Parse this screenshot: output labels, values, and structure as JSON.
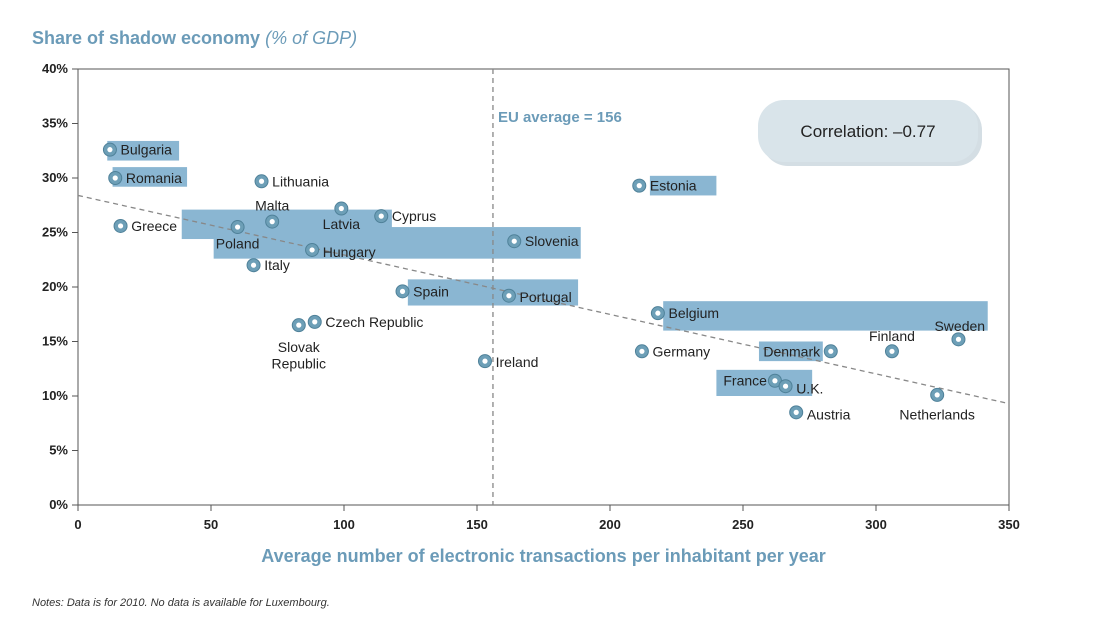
{
  "chart_data": {
    "type": "scatter",
    "title": "Share of shadow economy",
    "title_unit": "(% of GDP)",
    "xlabel": "Average number of electronic transactions per inhabitant per year",
    "ylabel": "",
    "xlim": [
      0,
      350
    ],
    "ylim": [
      0,
      40
    ],
    "xticks": [
      "0",
      "50",
      "100",
      "150",
      "200",
      "250",
      "300",
      "350"
    ],
    "yticks": [
      "0%",
      "5%",
      "10%",
      "15%",
      "20%",
      "25%",
      "30%",
      "35%",
      "40%"
    ],
    "eu_average": {
      "x": 156,
      "label": "EU average = 156"
    },
    "correlation_label": "Correlation: –0.77",
    "trend_line": {
      "x": [
        0,
        350
      ],
      "y": [
        28.4,
        9.3
      ]
    },
    "colors": {
      "point_fill": "#6d9fb7",
      "point_center": "#ffffff",
      "highlight": "#8ab6d2",
      "trend": "#888888",
      "title": "#6b9bb8",
      "box": "#d9e4ea"
    },
    "highlight_bands": [
      {
        "x": [
          11,
          38
        ],
        "y": [
          31.6,
          33.4
        ]
      },
      {
        "x": [
          13,
          41
        ],
        "y": [
          29.2,
          31.0
        ]
      },
      {
        "x": [
          39,
          118
        ],
        "y": [
          24.4,
          27.1
        ]
      },
      {
        "x": [
          51,
          189
        ],
        "y": [
          22.6,
          25.5
        ]
      },
      {
        "x": [
          124,
          188
        ],
        "y": [
          18.3,
          20.7
        ]
      },
      {
        "x": [
          215,
          240
        ],
        "y": [
          28.4,
          30.2
        ]
      },
      {
        "x": [
          220,
          342
        ],
        "y": [
          16.0,
          18.7
        ]
      },
      {
        "x": [
          256,
          280
        ],
        "y": [
          13.2,
          15.0
        ]
      },
      {
        "x": [
          240,
          276
        ],
        "y": [
          10.0,
          12.4
        ]
      }
    ],
    "points": [
      {
        "name": "Bulgaria",
        "x": 12,
        "y": 32.6
      },
      {
        "name": "Romania",
        "x": 14,
        "y": 30.0
      },
      {
        "name": "Greece",
        "x": 16,
        "y": 25.6
      },
      {
        "name": "Lithuania",
        "x": 69,
        "y": 29.7
      },
      {
        "name": "Malta",
        "x": 73,
        "y": 26.0
      },
      {
        "name": "Poland",
        "x": 60,
        "y": 25.5
      },
      {
        "name": "Italy",
        "x": 66,
        "y": 22.0
      },
      {
        "name": "Latvia",
        "x": 99,
        "y": 27.2
      },
      {
        "name": "Cyprus",
        "x": 114,
        "y": 26.5
      },
      {
        "name": "Hungary",
        "x": 88,
        "y": 23.4
      },
      {
        "name": "Slovenia",
        "x": 164,
        "y": 24.2
      },
      {
        "name": "Spain",
        "x": 122,
        "y": 19.6
      },
      {
        "name": "Portugal",
        "x": 162,
        "y": 19.2
      },
      {
        "name": "Czech Republic",
        "x": 89,
        "y": 16.8
      },
      {
        "name": "Slovak Republic",
        "x": 83,
        "y": 16.5
      },
      {
        "name": "Ireland",
        "x": 153,
        "y": 13.2
      },
      {
        "name": "Estonia",
        "x": 211,
        "y": 29.3
      },
      {
        "name": "Belgium",
        "x": 218,
        "y": 17.6
      },
      {
        "name": "Germany",
        "x": 212,
        "y": 14.1
      },
      {
        "name": "Denmark",
        "x": 283,
        "y": 14.1
      },
      {
        "name": "Finland",
        "x": 306,
        "y": 14.1
      },
      {
        "name": "Sweden",
        "x": 331,
        "y": 15.2
      },
      {
        "name": "France",
        "x": 262,
        "y": 11.4
      },
      {
        "name": "U.K.",
        "x": 266,
        "y": 10.9
      },
      {
        "name": "Austria",
        "x": 270,
        "y": 8.5
      },
      {
        "name": "Netherlands",
        "x": 323,
        "y": 10.1
      }
    ],
    "labels": [
      {
        "text": "Bulgaria",
        "x": 16,
        "y": 32.6,
        "anchor": "start"
      },
      {
        "text": "Romania",
        "x": 18,
        "y": 30.0,
        "anchor": "start"
      },
      {
        "text": "Greece",
        "x": 20,
        "y": 25.6,
        "anchor": "start"
      },
      {
        "text": "Lithuania",
        "x": 73,
        "y": 29.7,
        "anchor": "start"
      },
      {
        "text": "Malta",
        "x": 73,
        "y": 27.5,
        "anchor": "middle"
      },
      {
        "text": "Poland",
        "x": 60,
        "y": 24.0,
        "anchor": "middle"
      },
      {
        "text": "Italy",
        "x": 70,
        "y": 22.0,
        "anchor": "start"
      },
      {
        "text": "Latvia",
        "x": 99,
        "y": 25.8,
        "anchor": "middle"
      },
      {
        "text": "Cyprus",
        "x": 118,
        "y": 26.5,
        "anchor": "start"
      },
      {
        "text": "Hungary",
        "x": 92,
        "y": 23.2,
        "anchor": "start"
      },
      {
        "text": "Slovenia",
        "x": 168,
        "y": 24.2,
        "anchor": "start"
      },
      {
        "text": "Spain",
        "x": 126,
        "y": 19.6,
        "anchor": "start"
      },
      {
        "text": "Portugal",
        "x": 166,
        "y": 19.1,
        "anchor": "start"
      },
      {
        "text": "Czech Republic",
        "x": 93,
        "y": 16.8,
        "anchor": "start"
      },
      {
        "text": "Slovak",
        "x": 83,
        "y": 14.5,
        "anchor": "middle"
      },
      {
        "text": "Republic",
        "x": 83,
        "y": 13.0,
        "anchor": "middle"
      },
      {
        "text": "Ireland",
        "x": 157,
        "y": 13.1,
        "anchor": "start"
      },
      {
        "text": "Estonia",
        "x": 215,
        "y": 29.3,
        "anchor": "start"
      },
      {
        "text": "Belgium",
        "x": 222,
        "y": 17.6,
        "anchor": "start"
      },
      {
        "text": "Germany",
        "x": 216,
        "y": 14.1,
        "anchor": "start"
      },
      {
        "text": "Denmark",
        "x": 279,
        "y": 14.1,
        "anchor": "end"
      },
      {
        "text": "Finland",
        "x": 306,
        "y": 15.5,
        "anchor": "middle"
      },
      {
        "text": "Sweden",
        "x": 341,
        "y": 16.4,
        "anchor": "end"
      },
      {
        "text": "France",
        "x": 259,
        "y": 11.4,
        "anchor": "end"
      },
      {
        "text": "U.K.",
        "x": 270,
        "y": 10.7,
        "anchor": "start"
      },
      {
        "text": "Austria",
        "x": 274,
        "y": 8.3,
        "anchor": "start"
      },
      {
        "text": "Netherlands",
        "x": 323,
        "y": 8.3,
        "anchor": "middle"
      }
    ]
  },
  "notes": "Notes: Data is for 2010. No data is available for Luxembourg."
}
